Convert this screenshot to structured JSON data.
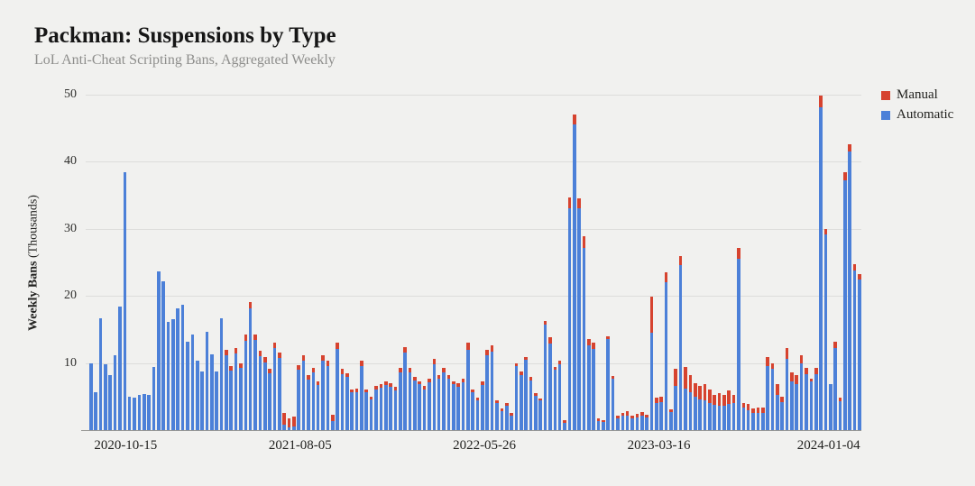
{
  "title": "Packman: Suspensions by Type",
  "subtitle": "LoL Anti-Cheat Scripting Bans, Aggregated Weekly",
  "legend": {
    "items": [
      {
        "label": "Manual",
        "color": "#d6432f"
      },
      {
        "label": "Automatic",
        "color": "#4c80d8"
      }
    ]
  },
  "y_axis": {
    "label_bold": "Weekly Bans",
    "label_paren": " (Thousands)",
    "ticks": [
      10,
      20,
      30,
      40,
      50
    ],
    "max": 50
  },
  "x_axis": {
    "tick_labels": [
      "2020-10-15",
      "2021-08-05",
      "2022-05-26",
      "2023-03-16",
      "2024-01-04"
    ],
    "tick_bar_indices": [
      7,
      43,
      81,
      117,
      152
    ]
  },
  "chart_data": {
    "type": "bar",
    "stacked": true,
    "title": "Packman: Suspensions by Type",
    "subtitle": "LoL Anti-Cheat Scripting Bans, Aggregated Weekly",
    "xlabel": "",
    "ylabel": "Weekly Bans (Thousands)",
    "ylim": [
      0,
      50
    ],
    "grid": true,
    "legend_position": "top-right",
    "unit": "thousands of bans per week",
    "n_bars": 160,
    "x_tick_labels": [
      "2020-10-15",
      "2021-08-05",
      "2022-05-26",
      "2023-03-16",
      "2024-01-04"
    ],
    "x_tick_bar_indices": [
      7,
      43,
      81,
      117,
      152
    ],
    "series": [
      {
        "name": "Automatic",
        "color": "#4c80d8",
        "values": [
          10.0,
          5.6,
          16.7,
          9.8,
          8.2,
          11.2,
          18.4,
          38.4,
          5.0,
          4.8,
          5.2,
          5.4,
          5.2,
          9.4,
          23.7,
          22.2,
          16.1,
          16.6,
          18.2,
          18.7,
          13.2,
          14.2,
          10.4,
          8.7,
          14.7,
          11.3,
          8.8,
          16.7,
          11.2,
          8.9,
          11.4,
          9.3,
          13.3,
          18.1,
          13.4,
          11.0,
          10.1,
          8.5,
          12.2,
          10.7,
          0.8,
          0.4,
          0.5,
          9.0,
          10.3,
          7.5,
          8.6,
          6.7,
          10.3,
          9.6,
          1.4,
          12.1,
          8.4,
          7.9,
          5.6,
          5.7,
          9.5,
          5.6,
          4.6,
          6.1,
          6.3,
          6.7,
          6.5,
          5.9,
          8.6,
          11.5,
          8.6,
          7.4,
          6.8,
          6.1,
          7.1,
          9.8,
          7.6,
          8.6,
          7.6,
          6.8,
          6.5,
          7.1,
          12.0,
          5.6,
          4.4,
          6.7,
          11.1,
          11.7,
          4.1,
          2.8,
          3.6,
          2.2,
          9.6,
          8.2,
          10.5,
          7.4,
          5.1,
          4.4,
          15.7,
          12.9,
          9.0,
          9.8,
          1.1,
          33.1,
          45.5,
          33.1,
          27.1,
          12.7,
          12.1,
          1.4,
          1.2,
          13.6,
          7.6,
          1.7,
          2.1,
          2.2,
          1.7,
          1.9,
          2.1,
          1.9,
          14.5,
          4.0,
          4.2,
          22.0,
          2.7,
          6.6,
          24.6,
          6.2,
          5.7,
          5.0,
          4.6,
          4.4,
          4.1,
          3.8,
          3.6,
          3.6,
          3.9,
          4.0,
          25.5,
          3.3,
          3.0,
          2.6,
          2.6,
          2.6,
          9.5,
          9.2,
          5.3,
          4.2,
          10.6,
          7.2,
          6.9,
          9.9,
          8.3,
          7.2,
          8.4,
          48.1,
          29.2,
          6.8,
          12.3,
          4.3,
          37.3,
          41.5,
          23.8,
          22.5
        ]
      },
      {
        "name": "Manual",
        "color": "#d6432f",
        "values": [
          0,
          0,
          0,
          0,
          0,
          0,
          0,
          0,
          0,
          0,
          0,
          0,
          0,
          0,
          0,
          0,
          0,
          0,
          0,
          0,
          0,
          0,
          0,
          0,
          0,
          0,
          0,
          0,
          0.8,
          0.6,
          0.8,
          0.6,
          0.9,
          1.0,
          0.9,
          0.8,
          0.8,
          0.6,
          0.9,
          0.8,
          1.7,
          1.4,
          1.5,
          0.7,
          0.8,
          0.7,
          0.7,
          0.6,
          0.8,
          0.8,
          0.9,
          1.0,
          0.7,
          0.6,
          0.5,
          0.5,
          0.8,
          0.5,
          0.4,
          0.5,
          0.5,
          0.6,
          0.5,
          0.5,
          0.7,
          0.9,
          0.7,
          0.6,
          0.5,
          0.5,
          0.6,
          0.8,
          0.6,
          0.7,
          0.6,
          0.5,
          0.5,
          0.6,
          1.0,
          0.5,
          0.4,
          0.6,
          0.9,
          1.0,
          0.4,
          0.4,
          0.5,
          0.3,
          0.4,
          0.6,
          0.4,
          0.5,
          0.4,
          0.3,
          0.6,
          0.9,
          0.4,
          0.5,
          0.4,
          1.6,
          1.6,
          1.5,
          1.8,
          0.9,
          0.9,
          0.4,
          0.3,
          0.4,
          0.5,
          0.5,
          0.4,
          0.6,
          0.4,
          0.5,
          0.6,
          0.4,
          5.4,
          0.8,
          0.8,
          1.5,
          0.4,
          2.5,
          1.3,
          3.2,
          2.5,
          2.0,
          2.0,
          2.4,
          2.0,
          1.4,
          1.9,
          1.6,
          2.0,
          1.2,
          1.6,
          0.8,
          0.9,
          0.6,
          0.8,
          0.8,
          1.4,
          0.8,
          1.5,
          0.8,
          1.6,
          1.4,
          1.3,
          1.2,
          1.0,
          0.5,
          0.9,
          1.8,
          0.8,
          0.0,
          0.9,
          0.6,
          1.2,
          1.1,
          0.9,
          0.8
        ]
      }
    ]
  }
}
